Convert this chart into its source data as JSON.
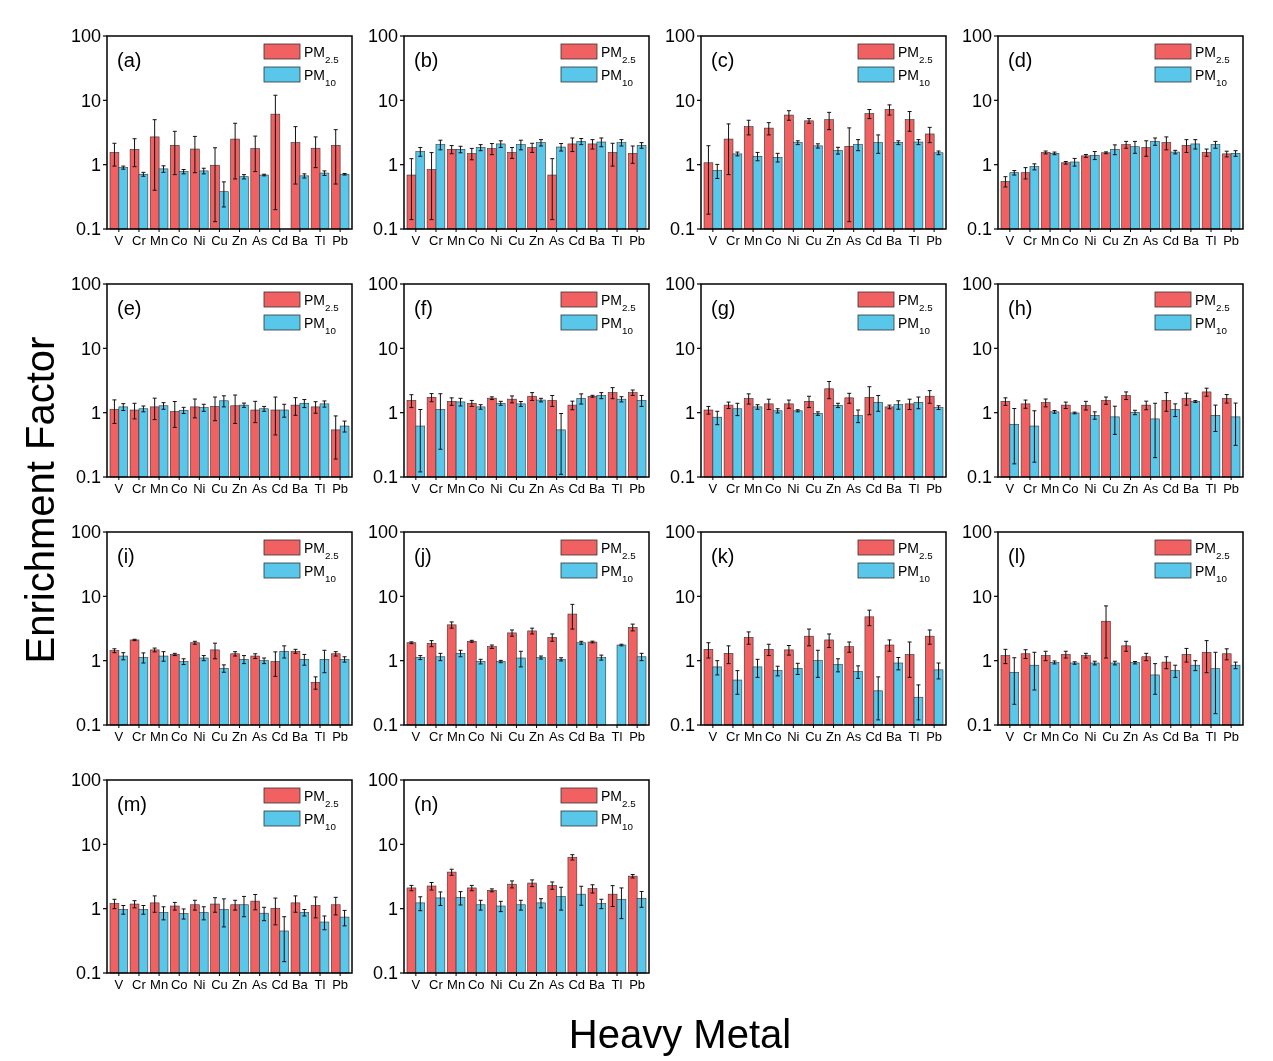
{
  "chart_data": [
    {
      "type": "bar",
      "title": "(a)",
      "ylabel": "Enrichment Factor",
      "xlabel": "Heavy Metal",
      "log": true,
      "legend": "top right",
      "ylim": [
        0.1,
        100
      ],
      "yticks": [
        0.1,
        1,
        10,
        100
      ],
      "categories": [
        "V",
        "Cr",
        "Mn",
        "Co",
        "Ni",
        "Cu",
        "Zn",
        "As",
        "Cd",
        "Ba",
        "Tl",
        "Pb"
      ],
      "series": [
        {
          "name": "PM$_{2.5}$",
          "color": "#f26161",
          "values": [
            1.55,
            1.73,
            2.7,
            2.0,
            1.75,
            0.98,
            2.5,
            1.78,
            6.1,
            2.2,
            1.8,
            2.0
          ],
          "errors": [
            0.6,
            0.8,
            2.3,
            1.3,
            1.0,
            0.85,
            1.9,
            1.0,
            5.9,
            1.7,
            0.9,
            1.5
          ]
        },
        {
          "name": "PM$_{10}$",
          "color": "#58c7ea",
          "values": [
            0.9,
            0.71,
            0.86,
            0.78,
            0.8,
            0.38,
            0.65,
            0.69,
            null,
            0.67,
            0.74,
            0.71
          ],
          "errors": [
            0.05,
            0.05,
            0.1,
            0.06,
            0.08,
            0.16,
            0.05,
            0.02,
            null,
            0.05,
            0.06,
            0.02
          ]
        }
      ]
    },
    {
      "type": "bar",
      "title": "(b)",
      "log": true,
      "legend": "top right",
      "ylim": [
        0.1,
        100
      ],
      "yticks": [
        0.1,
        1,
        10,
        100
      ],
      "categories": [
        "V",
        "Cr",
        "Mn",
        "Co",
        "Ni",
        "Cu",
        "Zn",
        "As",
        "Cd",
        "Ba",
        "Tl",
        "Pb"
      ],
      "series": [
        {
          "name": "PM$_{2.5}$",
          "color": "#f26161",
          "values": [
            0.69,
            0.84,
            1.73,
            1.49,
            1.78,
            1.55,
            1.85,
            0.69,
            2.1,
            2.1,
            1.55,
            1.5
          ],
          "errors": [
            0.55,
            0.7,
            0.25,
            0.3,
            0.35,
            0.3,
            0.3,
            0.55,
            0.5,
            0.35,
            0.6,
            0.45
          ]
        },
        {
          "name": "PM$_{10}$",
          "color": "#58c7ea",
          "values": [
            1.6,
            2.05,
            1.73,
            1.85,
            2.1,
            2.05,
            2.2,
            1.88,
            2.3,
            2.25,
            2.2,
            2.0
          ],
          "errors": [
            0.25,
            0.35,
            0.2,
            0.2,
            0.25,
            0.35,
            0.25,
            0.25,
            0.25,
            0.35,
            0.25,
            0.2
          ]
        }
      ]
    },
    {
      "type": "bar",
      "title": "(c)",
      "log": true,
      "legend": "top right",
      "ylim": [
        0.1,
        100
      ],
      "yticks": [
        0.1,
        1,
        10,
        100
      ],
      "categories": [
        "V",
        "Cr",
        "Mn",
        "Co",
        "Ni",
        "Cu",
        "Zn",
        "As",
        "Cd",
        "Ba",
        "Tl",
        "Pb"
      ],
      "series": [
        {
          "name": "PM$_{2.5}$",
          "color": "#f26161",
          "values": [
            1.07,
            2.5,
            3.9,
            3.7,
            5.9,
            4.8,
            5.0,
            1.93,
            6.2,
            7.2,
            5.0,
            3.0
          ],
          "errors": [
            0.9,
            1.8,
            1.0,
            0.8,
            1.0,
            0.4,
            1.5,
            1.8,
            1.0,
            1.3,
            1.7,
            0.8
          ]
        },
        {
          "name": "PM$_{10}$",
          "color": "#58c7ea",
          "values": [
            0.81,
            1.47,
            1.35,
            1.3,
            2.2,
            1.96,
            1.66,
            2.05,
            2.2,
            2.2,
            2.25,
            1.53
          ],
          "errors": [
            0.2,
            0.1,
            0.2,
            0.2,
            0.15,
            0.15,
            0.2,
            0.4,
            0.7,
            0.15,
            0.2,
            0.1
          ]
        }
      ]
    },
    {
      "type": "bar",
      "title": "(d)",
      "log": true,
      "legend": "top right",
      "ylim": [
        0.1,
        100
      ],
      "yticks": [
        0.1,
        1,
        10,
        100
      ],
      "categories": [
        "V",
        "Cr",
        "Mn",
        "Co",
        "Ni",
        "Cu",
        "Zn",
        "As",
        "Cd",
        "Ba",
        "Tl",
        "Pb"
      ],
      "series": [
        {
          "name": "PM$_{2.5}$",
          "color": "#f26161",
          "values": [
            0.55,
            0.75,
            1.55,
            1.07,
            1.37,
            1.53,
            2.05,
            1.85,
            2.2,
            2.0,
            1.55,
            1.47
          ],
          "errors": [
            0.1,
            0.15,
            0.08,
            0.05,
            0.07,
            0.05,
            0.25,
            0.5,
            0.5,
            0.45,
            0.2,
            0.15
          ]
        },
        {
          "name": "PM$_{10}$",
          "color": "#58c7ea",
          "values": [
            0.75,
            0.93,
            1.5,
            1.1,
            1.4,
            1.73,
            1.9,
            2.3,
            1.57,
            2.1,
            2.05,
            1.5
          ],
          "errors": [
            0.06,
            0.1,
            0.07,
            0.15,
            0.2,
            0.3,
            0.4,
            0.3,
            0.1,
            0.35,
            0.25,
            0.15
          ]
        }
      ]
    },
    {
      "type": "bar",
      "title": "(e)",
      "log": true,
      "legend": "top right",
      "ylim": [
        0.1,
        100
      ],
      "yticks": [
        0.1,
        1,
        10,
        100
      ],
      "categories": [
        "V",
        "Cr",
        "Mn",
        "Co",
        "Ni",
        "Cu",
        "Zn",
        "As",
        "Cd",
        "Ba",
        "Tl",
        "Pb"
      ],
      "series": [
        {
          "name": "PM$_{2.5}$",
          "color": "#f26161",
          "values": [
            1.13,
            1.1,
            1.23,
            1.04,
            1.23,
            1.25,
            1.28,
            1.1,
            1.1,
            1.31,
            1.23,
            0.54
          ],
          "errors": [
            0.45,
            0.3,
            0.45,
            0.45,
            0.4,
            0.5,
            0.6,
            0.4,
            0.65,
            0.4,
            0.25,
            0.35
          ]
        },
        {
          "name": "PM$_{10}$",
          "color": "#58c7ea",
          "values": [
            1.23,
            1.15,
            1.28,
            1.09,
            1.2,
            1.53,
            1.31,
            1.15,
            1.1,
            1.4,
            1.37,
            0.62
          ],
          "errors": [
            0.15,
            0.12,
            0.15,
            0.12,
            0.15,
            0.3,
            0.1,
            0.1,
            0.25,
            0.2,
            0.15,
            0.12
          ]
        }
      ]
    },
    {
      "type": "bar",
      "title": "(f)",
      "log": true,
      "legend": "top right",
      "ylim": [
        0.1,
        100
      ],
      "yticks": [
        0.1,
        1,
        10,
        100
      ],
      "categories": [
        "V",
        "Cr",
        "Mn",
        "Co",
        "Ni",
        "Cu",
        "Zn",
        "As",
        "Cd",
        "Ba",
        "Tl",
        "Pb"
      ],
      "series": [
        {
          "name": "PM$_{2.5}$",
          "color": "#f26161",
          "values": [
            1.55,
            1.73,
            1.5,
            1.4,
            1.68,
            1.62,
            1.8,
            1.55,
            1.31,
            1.8,
            2.05,
            2.05
          ],
          "errors": [
            0.35,
            0.25,
            0.2,
            0.15,
            0.08,
            0.2,
            0.25,
            0.3,
            0.2,
            0.06,
            0.4,
            0.2
          ]
        },
        {
          "name": "PM$_{10}$",
          "color": "#58c7ea",
          "values": [
            0.62,
            1.12,
            1.47,
            1.23,
            1.4,
            1.37,
            1.57,
            0.54,
            1.66,
            1.85,
            1.62,
            1.55
          ],
          "errors": [
            0.5,
            0.85,
            0.2,
            0.1,
            0.1,
            0.12,
            0.1,
            0.43,
            0.3,
            0.2,
            0.15,
            0.3
          ]
        }
      ]
    },
    {
      "type": "bar",
      "title": "(g)",
      "log": true,
      "legend": "top right",
      "ylim": [
        0.1,
        100
      ],
      "yticks": [
        0.1,
        1,
        10,
        100
      ],
      "categories": [
        "V",
        "Cr",
        "Mn",
        "Co",
        "Ni",
        "Cu",
        "Zn",
        "As",
        "Cd",
        "Ba",
        "Tl",
        "Pb"
      ],
      "series": [
        {
          "name": "PM$_{2.5}$",
          "color": "#f26161",
          "values": [
            1.1,
            1.31,
            1.66,
            1.37,
            1.37,
            1.5,
            2.35,
            1.7,
            1.73,
            1.23,
            1.37,
            1.8
          ],
          "errors": [
            0.15,
            0.15,
            0.3,
            0.25,
            0.2,
            0.3,
            0.7,
            0.3,
            0.8,
            0.08,
            0.25,
            0.4
          ]
        },
        {
          "name": "PM$_{10}$",
          "color": "#58c7ea",
          "values": [
            0.85,
            1.15,
            1.23,
            1.07,
            1.07,
            0.97,
            1.3,
            0.9,
            1.45,
            1.33,
            1.45,
            1.2
          ],
          "errors": [
            0.2,
            0.25,
            0.1,
            0.08,
            0.04,
            0.06,
            0.1,
            0.2,
            0.4,
            0.2,
            0.3,
            0.08
          ]
        }
      ]
    },
    {
      "type": "bar",
      "title": "(h)",
      "log": true,
      "legend": "top right",
      "ylim": [
        0.1,
        100
      ],
      "yticks": [
        0.1,
        1,
        10,
        100
      ],
      "categories": [
        "V",
        "Cr",
        "Mn",
        "Co",
        "Ni",
        "Cu",
        "Zn",
        "As",
        "Cd",
        "Ba",
        "Tl",
        "Pb"
      ],
      "series": [
        {
          "name": "PM$_{2.5}$",
          "color": "#f26161",
          "values": [
            1.5,
            1.37,
            1.43,
            1.31,
            1.3,
            1.55,
            1.85,
            1.31,
            1.55,
            1.66,
            2.1,
            1.66
          ],
          "errors": [
            0.2,
            0.2,
            0.2,
            0.15,
            0.2,
            0.2,
            0.25,
            0.2,
            0.5,
            0.35,
            0.3,
            0.25
          ]
        },
        {
          "name": "PM$_{10}$",
          "color": "#58c7ea",
          "values": [
            0.66,
            0.62,
            1.03,
            0.99,
            0.91,
            0.86,
            1.01,
            0.8,
            1.12,
            1.49,
            0.91,
            0.86
          ],
          "errors": [
            0.5,
            0.45,
            0.05,
            0.03,
            0.12,
            0.4,
            0.08,
            0.6,
            0.25,
            0.05,
            0.4,
            0.55
          ]
        }
      ]
    },
    {
      "type": "bar",
      "title": "(i)",
      "log": true,
      "legend": "top right",
      "ylim": [
        0.1,
        100
      ],
      "yticks": [
        0.1,
        1,
        10,
        100
      ],
      "categories": [
        "V",
        "Cr",
        "Mn",
        "Co",
        "Ni",
        "Cu",
        "Zn",
        "As",
        "Cd",
        "Ba",
        "Tl",
        "Pb"
      ],
      "series": [
        {
          "name": "PM$_{2.5}$",
          "color": "#f26161",
          "values": [
            1.43,
            2.1,
            1.47,
            1.25,
            1.9,
            1.47,
            1.28,
            1.18,
            0.97,
            1.4,
            0.46,
            1.28
          ],
          "errors": [
            0.1,
            0.05,
            0.1,
            0.05,
            0.1,
            0.4,
            0.1,
            0.1,
            0.4,
            0.1,
            0.1,
            0.1
          ]
        },
        {
          "name": "PM$_{10}$",
          "color": "#58c7ea",
          "values": [
            1.18,
            1.12,
            1.18,
            0.97,
            1.1,
            0.76,
            1.05,
            1.0,
            1.4,
            1.05,
            1.05,
            1.05
          ],
          "errors": [
            0.15,
            0.2,
            0.2,
            0.1,
            0.1,
            0.1,
            0.15,
            0.1,
            0.3,
            0.2,
            0.4,
            0.1
          ]
        }
      ]
    },
    {
      "type": "bar",
      "title": "(j)",
      "log": true,
      "legend": "top right",
      "ylim": [
        0.1,
        100
      ],
      "yticks": [
        0.1,
        1,
        10,
        100
      ],
      "categories": [
        "V",
        "Cr",
        "Mn",
        "Co",
        "Ni",
        "Cu",
        "Zn",
        "As",
        "Cd",
        "Ba",
        "Tl",
        "Pb"
      ],
      "series": [
        {
          "name": "PM$_{2.5}$",
          "color": "#f26161",
          "values": [
            1.9,
            1.85,
            3.6,
            2.0,
            1.65,
            2.7,
            2.9,
            2.3,
            5.3,
            1.95,
            null,
            3.3
          ],
          "errors": [
            0.06,
            0.2,
            0.4,
            0.07,
            0.1,
            0.3,
            0.3,
            0.3,
            2.2,
            0.06,
            null,
            0.4
          ]
        },
        {
          "name": "PM$_{10}$",
          "color": "#58c7ea",
          "values": [
            1.12,
            1.15,
            1.3,
            0.97,
            0.97,
            1.1,
            1.12,
            1.05,
            1.9,
            1.12,
            1.75,
            1.15
          ],
          "errors": [
            0.08,
            0.15,
            0.15,
            0.08,
            0.04,
            0.3,
            0.06,
            0.06,
            0.1,
            0.1,
            0.05,
            0.15
          ]
        }
      ]
    },
    {
      "type": "bar",
      "title": "(k)",
      "log": true,
      "legend": "top right",
      "ylim": [
        0.1,
        100
      ],
      "yticks": [
        0.1,
        1,
        10,
        100
      ],
      "categories": [
        "V",
        "Cr",
        "Mn",
        "Co",
        "Ni",
        "Cu",
        "Zn",
        "As",
        "Cd",
        "Ba",
        "Tl",
        "Pb"
      ],
      "series": [
        {
          "name": "PM$_{2.5}$",
          "color": "#f26161",
          "values": [
            1.5,
            1.3,
            2.3,
            1.5,
            1.47,
            2.4,
            2.1,
            1.65,
            4.8,
            1.75,
            1.25,
            2.4
          ],
          "errors": [
            0.4,
            0.4,
            0.5,
            0.3,
            0.25,
            0.7,
            0.5,
            0.3,
            1.3,
            0.35,
            0.7,
            0.6
          ]
        },
        {
          "name": "PM$_{10}$",
          "color": "#58c7ea",
          "values": [
            0.8,
            0.5,
            0.8,
            0.7,
            0.76,
            1.0,
            0.87,
            0.68,
            0.34,
            0.92,
            0.27,
            0.72
          ],
          "errors": [
            0.2,
            0.2,
            0.25,
            0.12,
            0.15,
            0.45,
            0.2,
            0.15,
            0.22,
            0.2,
            0.15,
            0.2
          ]
        }
      ]
    },
    {
      "type": "bar",
      "title": "(l)",
      "log": true,
      "legend": "top right",
      "ylim": [
        0.1,
        100
      ],
      "yticks": [
        0.1,
        1,
        10,
        100
      ],
      "categories": [
        "V",
        "Cr",
        "Mn",
        "Co",
        "Ni",
        "Cu",
        "Zn",
        "As",
        "Cd",
        "Ba",
        "Tl",
        "Pb"
      ],
      "series": [
        {
          "name": "PM$_{2.5}$",
          "color": "#f26161",
          "values": [
            1.2,
            1.28,
            1.2,
            1.25,
            1.2,
            4.1,
            1.7,
            1.15,
            0.95,
            1.25,
            1.35,
            1.28
          ],
          "errors": [
            0.3,
            0.2,
            0.2,
            0.15,
            0.1,
            3.0,
            0.3,
            0.15,
            0.2,
            0.3,
            0.7,
            0.25
          ]
        },
        {
          "name": "PM$_{10}$",
          "color": "#58c7ea",
          "values": [
            0.66,
            0.85,
            0.94,
            0.92,
            0.92,
            0.92,
            0.93,
            0.6,
            0.7,
            0.85,
            0.75,
            0.85
          ],
          "errors": [
            0.45,
            0.5,
            0.05,
            0.04,
            0.06,
            0.06,
            0.04,
            0.3,
            0.15,
            0.15,
            0.6,
            0.1
          ]
        }
      ]
    },
    {
      "type": "bar",
      "title": "(m)",
      "log": true,
      "legend": "top right",
      "ylim": [
        0.1,
        100
      ],
      "yticks": [
        0.1,
        1,
        10,
        100
      ],
      "categories": [
        "V",
        "Cr",
        "Mn",
        "Co",
        "Ni",
        "Cu",
        "Zn",
        "As",
        "Cd",
        "Ba",
        "Tl",
        "Pb"
      ],
      "series": [
        {
          "name": "PM$_{2.5}$",
          "color": "#f26161",
          "values": [
            1.2,
            1.18,
            1.23,
            1.1,
            1.15,
            1.18,
            1.15,
            1.31,
            1.01,
            1.23,
            1.12,
            1.15
          ],
          "errors": [
            0.2,
            0.15,
            0.35,
            0.15,
            0.2,
            0.3,
            0.2,
            0.35,
            0.45,
            0.35,
            0.4,
            0.35
          ]
        },
        {
          "name": "PM$_{10}$",
          "color": "#58c7ea",
          "values": [
            0.97,
            0.97,
            0.87,
            0.84,
            0.87,
            0.97,
            1.15,
            0.85,
            0.45,
            0.87,
            0.62,
            0.74
          ],
          "errors": [
            0.15,
            0.15,
            0.2,
            0.15,
            0.2,
            0.45,
            0.4,
            0.2,
            0.3,
            0.1,
            0.15,
            0.2
          ]
        }
      ]
    },
    {
      "type": "bar",
      "title": "(n)",
      "log": true,
      "legend": "top right",
      "ylim": [
        0.1,
        100
      ],
      "yticks": [
        0.1,
        1,
        10,
        100
      ],
      "categories": [
        "V",
        "Cr",
        "Mn",
        "Co",
        "Ni",
        "Cu",
        "Zn",
        "As",
        "Cd",
        "Ba",
        "Tl",
        "Pb"
      ],
      "series": [
        {
          "name": "PM$_{2.5}$",
          "color": "#f26161",
          "values": [
            2.1,
            2.25,
            3.7,
            2.1,
            1.93,
            2.4,
            2.5,
            2.3,
            6.3,
            2.05,
            1.68,
            3.2
          ],
          "errors": [
            0.2,
            0.3,
            0.4,
            0.2,
            0.1,
            0.3,
            0.3,
            0.3,
            0.6,
            0.3,
            0.6,
            0.2
          ]
        },
        {
          "name": "PM$_{10}$",
          "color": "#58c7ea",
          "values": [
            1.23,
            1.47,
            1.49,
            1.15,
            1.1,
            1.15,
            1.23,
            1.55,
            1.68,
            1.2,
            1.4,
            1.45
          ],
          "errors": [
            0.3,
            0.35,
            0.35,
            0.2,
            0.2,
            0.2,
            0.2,
            0.6,
            0.55,
            0.2,
            0.7,
            0.4
          ]
        }
      ]
    }
  ]
}
